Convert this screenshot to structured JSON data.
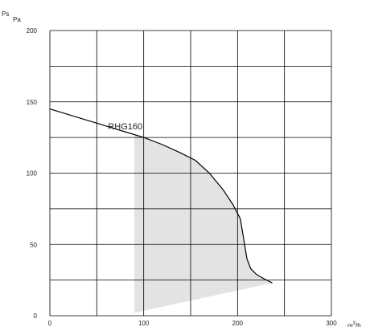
{
  "chart_data": {
    "type": "line",
    "title": "",
    "ylabel_main": "Ps",
    "ylabel_unit": "Pa",
    "xlabel_main": "m",
    "xlabel_sup": "3",
    "xlabel_rest": "/h",
    "xlim": [
      0,
      300
    ],
    "ylim": [
      0,
      200
    ],
    "x_major_ticks": [
      0,
      100,
      200,
      300
    ],
    "x_grid": [
      0,
      50,
      100,
      150,
      200,
      250,
      300
    ],
    "y_major_ticks": [
      0,
      50,
      100,
      150,
      200
    ],
    "y_grid": [
      0,
      25,
      50,
      75,
      100,
      125,
      150,
      175,
      200
    ],
    "grid": true,
    "series": [
      {
        "name": "RHG160",
        "color": "#000000",
        "x": [
          0,
          20,
          40,
          60,
          80,
          100,
          120,
          140,
          155,
          170,
          185,
          195,
          203,
          207,
          210,
          214,
          220,
          228,
          237
        ],
        "y": [
          145,
          141,
          137,
          133,
          129,
          125,
          120,
          114,
          109,
          100,
          88,
          78,
          68,
          52,
          40,
          33,
          29,
          26,
          23
        ]
      }
    ],
    "shaded_region": {
      "color": "#e3e3e3",
      "lower_x": [
        90,
        237
      ],
      "lower_y": [
        2,
        23
      ],
      "left_x": 90,
      "upper_from_x": 90,
      "upper_to_x": 237
    },
    "annotations": [
      {
        "text": "RHG160",
        "x": 62,
        "y": 133
      }
    ]
  }
}
